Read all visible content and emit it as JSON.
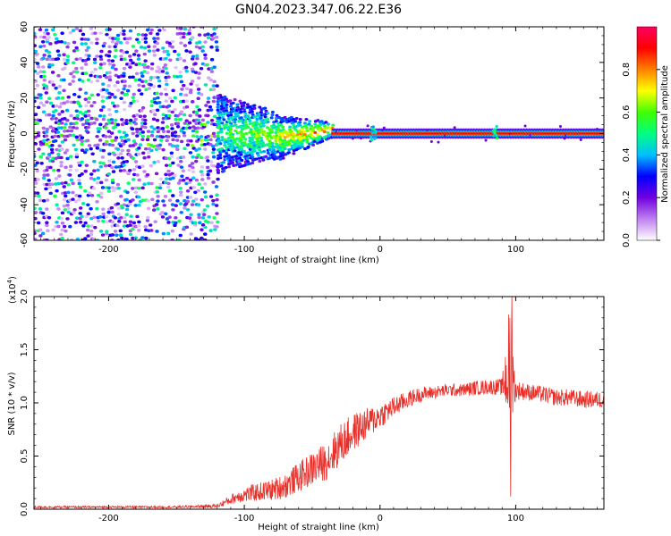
{
  "title": "GN04.2023.347.06.22.E36",
  "chart_data": [
    {
      "type": "heatmap",
      "xlabel": "Height of straight line (km)",
      "ylabel": "Frequency (Hz)",
      "xlim": [
        -255,
        165
      ],
      "ylim": [
        -60,
        60
      ],
      "xticks": [
        -200,
        -100,
        0,
        100
      ],
      "yticks": [
        -60,
        -40,
        -20,
        0,
        20,
        40,
        60
      ],
      "colorbar": {
        "label": "Normalized spectral amplitude",
        "range": [
          0,
          1
        ],
        "ticks": [
          "0.0",
          "0.2",
          "0.4",
          "0.6",
          "0.8"
        ],
        "colors": [
          "#ffffff",
          "#c080f0",
          "#7000e0",
          "#0000ff",
          "#00c0ff",
          "#00ff80",
          "#40ff00",
          "#ffff00",
          "#ff8000",
          "#ff0000",
          "#ff0060"
        ]
      },
      "features": {
        "noise_region_x": [
          -255,
          -120
        ],
        "noise_band_halfwidth_hz": 60,
        "transition_x": [
          -120,
          -35
        ],
        "line_x": [
          -35,
          165
        ],
        "line_frequency_hz": 0,
        "line_color": "#ff2020",
        "bright_spots_x": [
          -5,
          85
        ]
      }
    },
    {
      "type": "line",
      "xlabel": "Height of straight line (km)",
      "ylabel": "SNR (10 * v/v)",
      "multiplier": "(x10",
      "exponent": "4",
      "multiplier_close": ")",
      "xlim": [
        -255,
        165
      ],
      "ylim": [
        0,
        2
      ],
      "xticks": [
        -200,
        -100,
        0,
        100
      ],
      "yticks": [
        "0.0",
        "0.5",
        "1.0",
        "1.5",
        "2.0"
      ],
      "color": "#e8302a",
      "series": [
        {
          "name": "SNR",
          "x": [
            -255,
            -200,
            -150,
            -120,
            -105,
            -95,
            -80,
            -70,
            -60,
            -50,
            -40,
            -30,
            -20,
            -10,
            0,
            10,
            20,
            30,
            40,
            50,
            60,
            70,
            80,
            90,
            94,
            96,
            98,
            100,
            110,
            120,
            130,
            140,
            150,
            160,
            165
          ],
          "y": [
            0.02,
            0.02,
            0.02,
            0.03,
            0.12,
            0.15,
            0.18,
            0.22,
            0.3,
            0.38,
            0.45,
            0.6,
            0.72,
            0.8,
            0.88,
            0.96,
            1.03,
            1.08,
            1.1,
            1.12,
            1.12,
            1.14,
            1.15,
            1.15,
            1.3,
            1.5,
            1.2,
            1.12,
            1.1,
            1.08,
            1.05,
            1.05,
            1.03,
            1.03,
            1.03
          ],
          "noise": [
            0.01,
            0.01,
            0.01,
            0.02,
            0.06,
            0.08,
            0.1,
            0.12,
            0.14,
            0.16,
            0.18,
            0.2,
            0.18,
            0.15,
            0.12,
            0.1,
            0.08,
            0.07,
            0.06,
            0.06,
            0.06,
            0.07,
            0.07,
            0.08,
            0.5,
            0.8,
            0.3,
            0.09,
            0.08,
            0.08,
            0.08,
            0.08,
            0.08,
            0.08,
            0.08
          ]
        }
      ]
    }
  ]
}
